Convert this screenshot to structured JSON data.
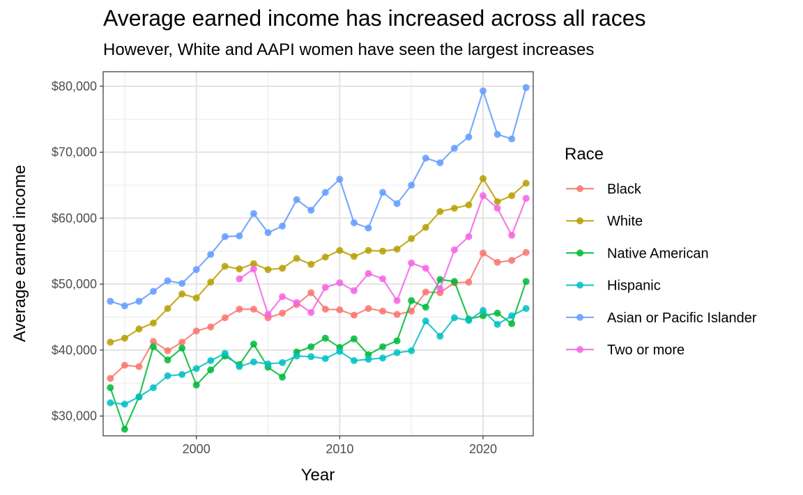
{
  "chart_data": {
    "type": "line",
    "title": "Average earned income has increased across all races",
    "subtitle": "However, White and AAPI women have seen the largest increases",
    "xlabel": "Year",
    "ylabel": "Average earned income",
    "xlim": [
      1993.5,
      2023.5
    ],
    "ylim": [
      27000,
      82200
    ],
    "x_ticks": [
      2000,
      2010,
      2020
    ],
    "x_tick_labels": [
      "2000",
      "2010",
      "2020"
    ],
    "y_ticks": [
      30000,
      40000,
      50000,
      60000,
      70000,
      80000
    ],
    "y_tick_labels": [
      "$30,000",
      "$40,000",
      "$50,000",
      "$60,000",
      "$70,000",
      "$80,000"
    ],
    "grid": true,
    "legend": {
      "title": "Race",
      "position": "right"
    },
    "series": [
      {
        "name": "Black",
        "color": "#F8766D",
        "x": [
          1994,
          1995,
          1996,
          1997,
          1998,
          1999,
          2000,
          2001,
          2002,
          2003,
          2004,
          2005,
          2006,
          2007,
          2008,
          2009,
          2010,
          2011,
          2012,
          2013,
          2014,
          2015,
          2016,
          2017,
          2018,
          2019,
          2020,
          2021,
          2022,
          2023
        ],
        "y": [
          35700,
          37700,
          37500,
          41300,
          39900,
          41200,
          42900,
          43500,
          44900,
          46200,
          46200,
          44900,
          45600,
          46900,
          48700,
          46200,
          46100,
          45300,
          46300,
          45900,
          45400,
          45900,
          48800,
          48700,
          50200,
          50300,
          54700,
          53300,
          53600,
          54800
        ]
      },
      {
        "name": "White",
        "color": "#B79F00",
        "x": [
          1994,
          1995,
          1996,
          1997,
          1998,
          1999,
          2000,
          2001,
          2002,
          2003,
          2004,
          2005,
          2006,
          2007,
          2008,
          2009,
          2010,
          2011,
          2012,
          2013,
          2014,
          2015,
          2016,
          2017,
          2018,
          2019,
          2020,
          2021,
          2022,
          2023
        ],
        "y": [
          41200,
          41800,
          43200,
          44100,
          46300,
          48500,
          47900,
          50300,
          52700,
          52300,
          53100,
          52200,
          52400,
          53900,
          53000,
          54100,
          55100,
          54200,
          55100,
          55000,
          55300,
          56900,
          58600,
          61000,
          61500,
          62000,
          66000,
          62500,
          63400,
          65300
        ]
      },
      {
        "name": "Native American",
        "color": "#00BA38",
        "x": [
          1994,
          1995,
          1996,
          1997,
          1998,
          1999,
          2000,
          2001,
          2002,
          2003,
          2004,
          2005,
          2006,
          2007,
          2008,
          2009,
          2010,
          2011,
          2012,
          2013,
          2014,
          2015,
          2016,
          2017,
          2018,
          2019,
          2020,
          2021,
          2022,
          2023
        ],
        "y": [
          34300,
          28000,
          32900,
          40500,
          38500,
          40300,
          34700,
          37000,
          39100,
          37800,
          40900,
          37400,
          35900,
          39700,
          40500,
          41800,
          40400,
          41700,
          39300,
          40500,
          41400,
          47500,
          46500,
          50700,
          50400,
          44700,
          45200,
          45600,
          44000,
          50400
        ]
      },
      {
        "name": "Hispanic",
        "color": "#00BFC4",
        "x": [
          1994,
          1995,
          1996,
          1997,
          1998,
          1999,
          2000,
          2001,
          2002,
          2003,
          2004,
          2005,
          2006,
          2007,
          2008,
          2009,
          2010,
          2011,
          2012,
          2013,
          2014,
          2015,
          2016,
          2017,
          2018,
          2019,
          2020,
          2021,
          2022,
          2023
        ],
        "y": [
          32000,
          31800,
          32900,
          34300,
          36100,
          36300,
          37200,
          38400,
          39500,
          37500,
          38200,
          37900,
          38100,
          39100,
          39000,
          38700,
          39800,
          38400,
          38600,
          38800,
          39600,
          39900,
          44400,
          42100,
          44900,
          44500,
          46000,
          43900,
          45200,
          46300
        ]
      },
      {
        "name": "Asian or Pacific Islander",
        "color": "#619CFF",
        "x": [
          1994,
          1995,
          1996,
          1997,
          1998,
          1999,
          2000,
          2001,
          2002,
          2003,
          2004,
          2005,
          2006,
          2007,
          2008,
          2009,
          2010,
          2011,
          2012,
          2013,
          2014,
          2015,
          2016,
          2017,
          2018,
          2019,
          2020,
          2021,
          2022,
          2023
        ],
        "y": [
          47400,
          46700,
          47400,
          48900,
          50500,
          50100,
          52200,
          54500,
          57200,
          57300,
          60700,
          57800,
          58800,
          62800,
          61200,
          63900,
          65900,
          59300,
          58500,
          63900,
          62200,
          65000,
          69100,
          68400,
          70600,
          72300,
          79300,
          72700,
          72000,
          79800
        ]
      },
      {
        "name": "Two or more",
        "color": "#F564E3",
        "x": [
          2003,
          2004,
          2005,
          2006,
          2007,
          2008,
          2009,
          2010,
          2011,
          2012,
          2013,
          2014,
          2015,
          2016,
          2017,
          2018,
          2019,
          2020,
          2021,
          2022,
          2023
        ],
        "y": [
          50800,
          52300,
          45400,
          48100,
          47200,
          45700,
          49500,
          50200,
          49000,
          51600,
          50800,
          47500,
          53200,
          52400,
          49300,
          55200,
          57200,
          63400,
          61500,
          57400,
          63000
        ]
      }
    ]
  }
}
